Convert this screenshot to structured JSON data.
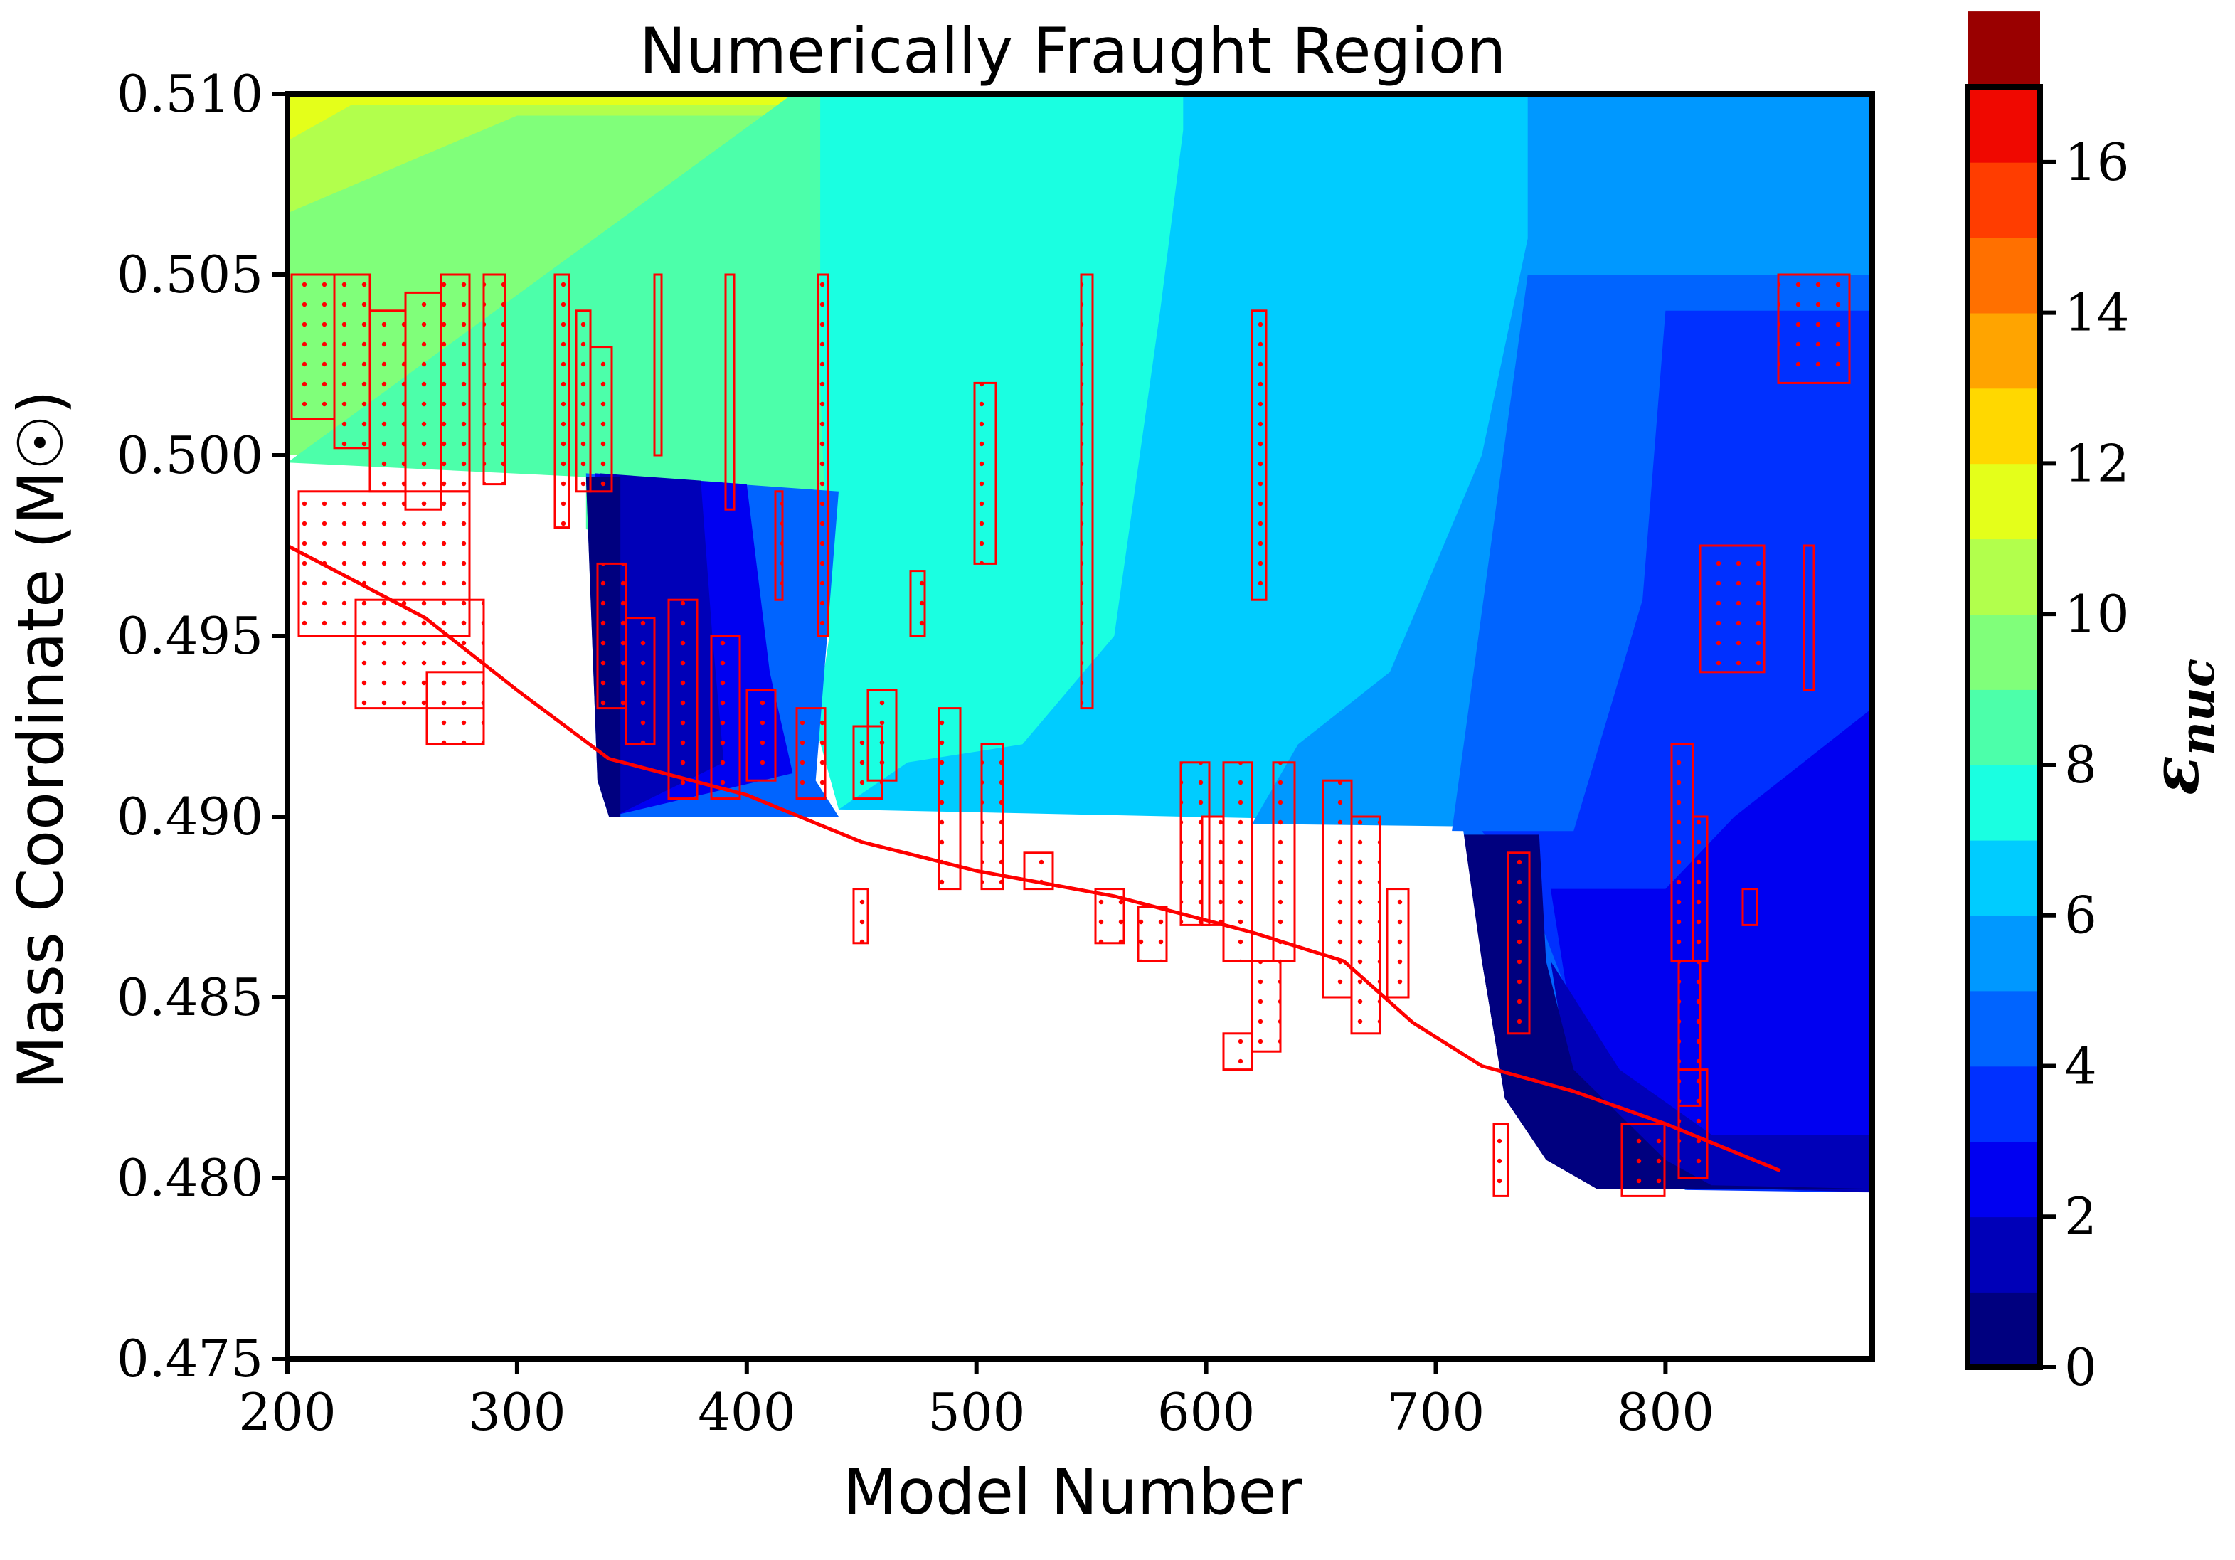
{
  "chart_data": {
    "type": "heatmap",
    "title": "Numerically Fraught Region",
    "xlabel": "Model Number",
    "ylabel": "Mass Coordinate (M☉)",
    "colorbar_label": "εnuc",
    "xlim": [
      200,
      890
    ],
    "ylim": [
      0.475,
      0.51
    ],
    "x_ticks": [
      "200",
      "300",
      "400",
      "500",
      "600",
      "700",
      "800"
    ],
    "x_tick_values": [
      200,
      300,
      400,
      500,
      600,
      700,
      800
    ],
    "y_ticks": [
      "0.475",
      "0.480",
      "0.485",
      "0.490",
      "0.495",
      "0.500",
      "0.505",
      "0.510"
    ],
    "y_tick_values": [
      0.475,
      0.48,
      0.485,
      0.49,
      0.495,
      0.5,
      0.505,
      0.51
    ],
    "colorbar_range": [
      0,
      17
    ],
    "colorbar_ticks": [
      "0",
      "2",
      "4",
      "6",
      "8",
      "10",
      "12",
      "14",
      "16"
    ],
    "colorbar_tick_values": [
      0,
      2,
      4,
      6,
      8,
      10,
      12,
      14,
      16
    ],
    "colorbar_colors": [
      "#00007f",
      "#0000b8",
      "#0000f1",
      "#0030ff",
      "#0064ff",
      "#0098ff",
      "#00ccff",
      "#1affe1",
      "#4cffaa",
      "#80ff7a",
      "#b2ff4c",
      "#e4ff1a",
      "#ffd800",
      "#ffa400",
      "#ff7000",
      "#ff3d00",
      "#f00800",
      "#9a0000"
    ],
    "grid": false,
    "hatch_color": "#ff0000"
  }
}
